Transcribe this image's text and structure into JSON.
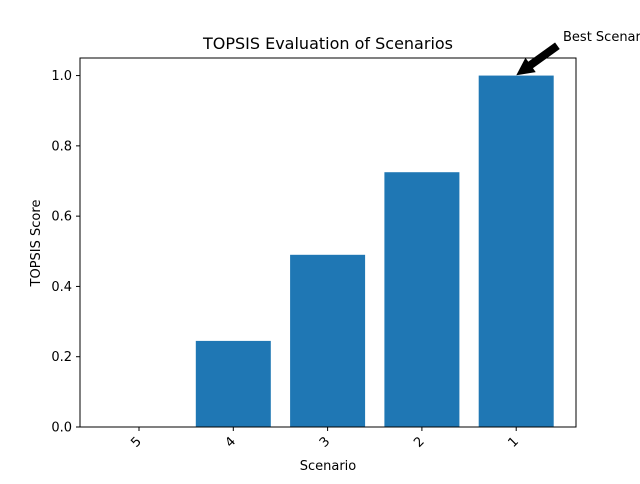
{
  "chart_data": {
    "type": "bar",
    "title": "TOPSIS Evaluation of Scenarios",
    "xlabel": "Scenario",
    "ylabel": "TOPSIS Score",
    "categories": [
      "5",
      "4",
      "3",
      "2",
      "1"
    ],
    "values": [
      0.0,
      0.245,
      0.49,
      0.725,
      1.0
    ],
    "ylim": [
      0,
      1.05
    ],
    "yticks": [
      "0.0",
      "0.2",
      "0.4",
      "0.6",
      "0.8",
      "1.0"
    ],
    "ytick_values": [
      0,
      0.2,
      0.4,
      0.6,
      0.8,
      1.0
    ],
    "xtick_rotation": "45 degrees",
    "bar_color": "#1f77b4",
    "grid": false,
    "annotation": {
      "text": "Best Scenario",
      "target_category": "1",
      "target_value": 1.0,
      "arrow_color": "#000000"
    }
  }
}
